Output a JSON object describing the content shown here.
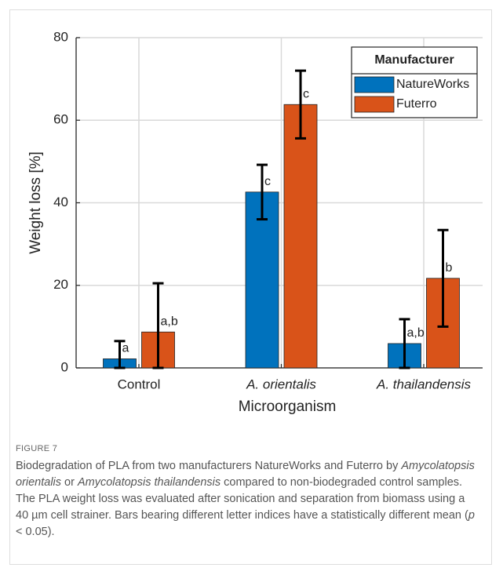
{
  "chart_data": {
    "type": "bar",
    "xlabel": "Microorganism",
    "ylabel": "Weight loss [%]",
    "categories": [
      "Control",
      "A. orientalis",
      "A. thailandensis"
    ],
    "category_styles": [
      "normal",
      "italic",
      "italic"
    ],
    "series": [
      {
        "name": "NatureWorks",
        "color": "#0072bd",
        "values": [
          2.2,
          42.6,
          5.9
        ],
        "errors": [
          4.3,
          6.6,
          5.9
        ],
        "letters": [
          "a",
          "c",
          "a,b"
        ]
      },
      {
        "name": "Futerro",
        "color": "#d95319",
        "values": [
          8.7,
          63.8,
          21.7
        ],
        "errors": [
          11.8,
          8.2,
          11.7
        ],
        "letters": [
          "a,b",
          "c",
          "b"
        ]
      }
    ],
    "ylim": [
      0,
      80
    ],
    "yticks": [
      0,
      20,
      40,
      60,
      80
    ],
    "grid": true,
    "legend_title": "Manufacturer",
    "legend": "upper right"
  },
  "caption": {
    "label": "FIGURE 7",
    "segments": [
      {
        "text": "Biodegradation of PLA from two manufacturers NatureWorks and Futerro by ",
        "italic": false
      },
      {
        "text": "Amycolatopsis orientalis",
        "italic": true
      },
      {
        "text": " or ",
        "italic": false
      },
      {
        "text": "Amycolatopsis thailandensis",
        "italic": true
      },
      {
        "text": " compared to non-biodegraded control samples. The PLA weight loss was evaluated after sonication and separation from biomass using a 40 µm cell strainer. Bars bearing different letter indices have a statistically different mean (",
        "italic": false
      },
      {
        "text": "p",
        "italic": true
      },
      {
        "text": " < 0.05).",
        "italic": false
      }
    ]
  }
}
